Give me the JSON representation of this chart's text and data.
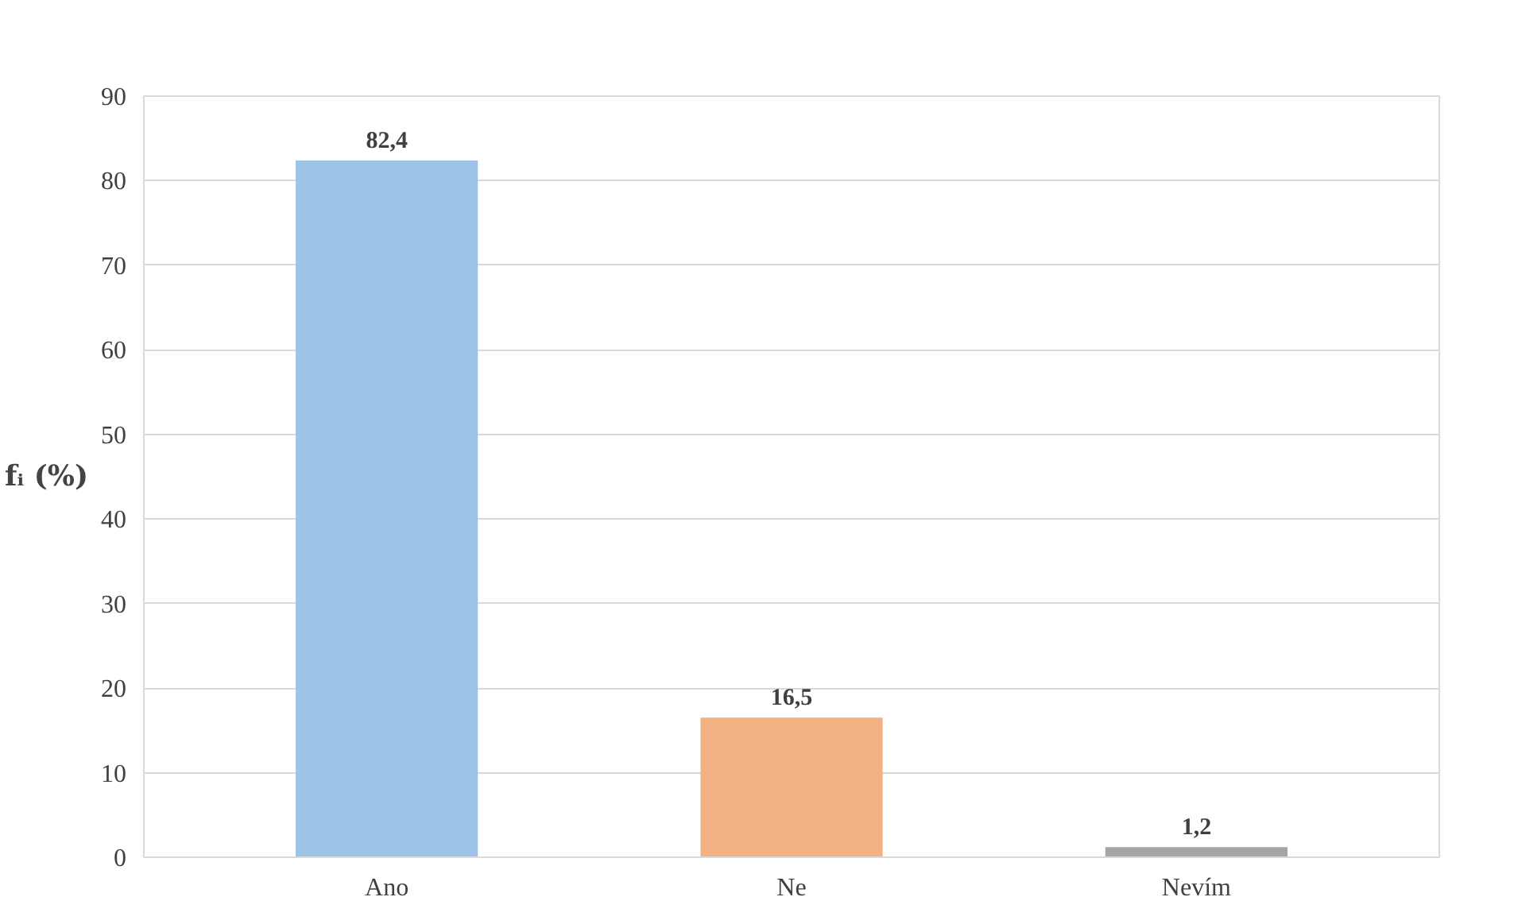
{
  "chart_data": {
    "type": "bar",
    "ylabel": "fᵢ (%)",
    "categories": [
      "Ano",
      "Ne",
      "Nevím"
    ],
    "values": [
      82.4,
      16.5,
      1.2
    ],
    "colors": [
      "#9dc3e6",
      "#f4b183",
      "#a5a5a5"
    ],
    "value_labels": [
      "82,4",
      "16,5",
      "1,2"
    ],
    "ylim": [
      0,
      90
    ],
    "yticks": [
      0,
      10,
      20,
      30,
      40,
      50,
      60,
      70,
      80,
      90
    ],
    "grid": "y"
  }
}
